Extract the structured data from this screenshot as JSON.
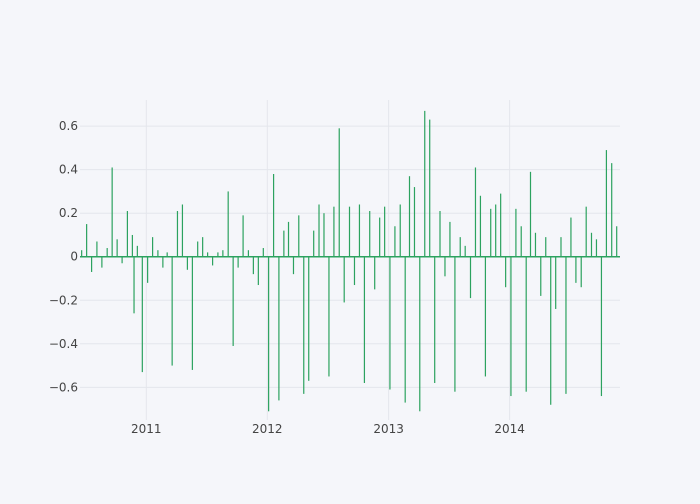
{
  "chart_data": {
    "type": "bar",
    "x_axis_type": "date",
    "xlim": [
      "2010-06-15",
      "2014-11-30"
    ],
    "ylim": [
      -0.75,
      0.72
    ],
    "x_tick_labels": [
      "2011",
      "2012",
      "2013",
      "2014"
    ],
    "y_tick_values": [
      -0.6,
      -0.4,
      -0.2,
      0,
      0.2,
      0.4,
      0.6
    ],
    "y_tick_labels": [
      "−0.6",
      "−0.4",
      "−0.2",
      "0",
      "0.2",
      "0.4",
      "0.6"
    ],
    "grid": true,
    "legend": "none",
    "series": [
      {
        "color": "#2ca25f",
        "x": [
          "2010-06-20",
          "2010-07-05",
          "2010-07-20",
          "2010-08-05",
          "2010-08-20",
          "2010-09-05",
          "2010-09-20",
          "2010-10-05",
          "2010-10-20",
          "2010-11-05",
          "2010-11-20",
          "2010-11-25",
          "2010-12-05",
          "2010-12-20",
          "2011-01-05",
          "2011-01-20",
          "2011-02-05",
          "2011-02-20",
          "2011-03-05",
          "2011-03-20",
          "2011-04-05",
          "2011-04-20",
          "2011-05-05",
          "2011-05-20",
          "2011-06-05",
          "2011-06-20",
          "2011-07-05",
          "2011-07-20",
          "2011-08-05",
          "2011-08-20",
          "2011-09-05",
          "2011-09-20",
          "2011-10-05",
          "2011-10-20",
          "2011-11-05",
          "2011-11-20",
          "2011-12-05",
          "2011-12-20",
          "2012-01-05",
          "2012-01-20",
          "2012-02-05",
          "2012-02-20",
          "2012-03-05",
          "2012-03-20",
          "2012-04-05",
          "2012-04-20",
          "2012-05-05",
          "2012-05-20",
          "2012-06-05",
          "2012-06-20",
          "2012-07-05",
          "2012-07-20",
          "2012-08-05",
          "2012-08-20",
          "2012-09-05",
          "2012-09-20",
          "2012-10-05",
          "2012-10-20",
          "2012-11-05",
          "2012-11-20",
          "2012-12-05",
          "2012-12-20",
          "2013-01-05",
          "2013-01-20",
          "2013-02-05",
          "2013-02-20",
          "2013-03-05",
          "2013-03-20",
          "2013-04-05",
          "2013-04-20",
          "2013-05-05",
          "2013-05-20",
          "2013-06-05",
          "2013-06-20",
          "2013-07-05",
          "2013-07-20",
          "2013-08-05",
          "2013-08-20",
          "2013-09-05",
          "2013-09-20",
          "2013-10-05",
          "2013-10-20",
          "2013-11-05",
          "2013-11-20",
          "2013-12-05",
          "2013-12-20",
          "2014-01-05",
          "2014-01-20",
          "2014-02-05",
          "2014-02-20",
          "2014-03-05",
          "2014-03-20",
          "2014-04-05",
          "2014-04-20",
          "2014-05-05",
          "2014-05-20",
          "2014-06-05",
          "2014-06-20",
          "2014-07-05",
          "2014-07-20",
          "2014-08-05",
          "2014-08-20",
          "2014-09-05",
          "2014-09-20",
          "2014-10-05",
          "2014-10-20",
          "2014-11-05",
          "2014-11-20"
        ],
        "y": [
          0.03,
          0.15,
          -0.07,
          0.07,
          -0.05,
          0.04,
          0.41,
          0.08,
          -0.03,
          0.21,
          0.1,
          -0.26,
          0.05,
          -0.53,
          -0.12,
          0.09,
          0.03,
          -0.05,
          0.02,
          -0.5,
          0.21,
          0.24,
          -0.06,
          -0.52,
          0.07,
          0.09,
          0.02,
          -0.04,
          0.02,
          0.03,
          0.3,
          -0.41,
          -0.05,
          0.19,
          0.03,
          -0.08,
          -0.13,
          0.04,
          -0.71,
          0.38,
          -0.66,
          0.12,
          0.16,
          -0.08,
          0.19,
          -0.63,
          -0.57,
          0.12,
          0.24,
          0.2,
          -0.55,
          0.23,
          0.59,
          -0.21,
          0.23,
          -0.13,
          0.24,
          -0.58,
          0.21,
          -0.15,
          0.18,
          0.23,
          -0.61,
          0.14,
          0.24,
          -0.67,
          0.37,
          0.32,
          -0.71,
          0.67,
          0.63,
          -0.58,
          0.21,
          -0.09,
          0.16,
          -0.62,
          0.09,
          0.05,
          -0.19,
          0.41,
          0.28,
          -0.55,
          0.22,
          0.24,
          0.29,
          -0.14,
          -0.64,
          0.22,
          0.14,
          -0.62,
          0.39,
          0.11,
          -0.18,
          0.09,
          -0.68,
          -0.24,
          0.09,
          -0.63,
          0.18,
          -0.12,
          -0.14,
          0.23,
          0.11,
          0.08,
          -0.64,
          0.49,
          0.43,
          0.14
        ]
      }
    ]
  }
}
